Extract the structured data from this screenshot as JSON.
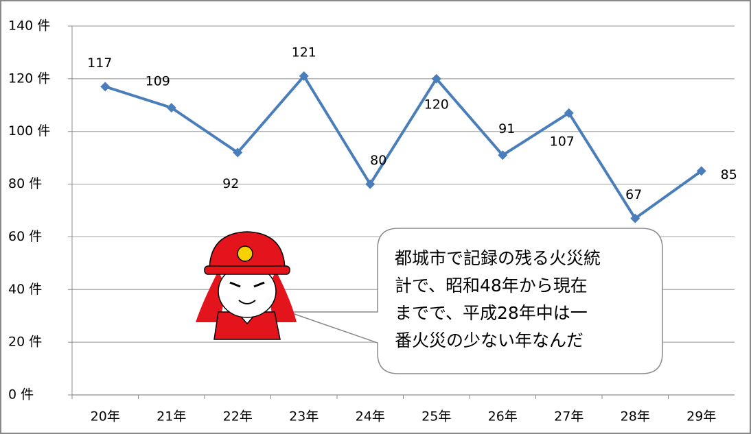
{
  "chart_data": {
    "type": "line",
    "categories": [
      "20年",
      "21年",
      "22年",
      "23年",
      "24年",
      "25年",
      "26年",
      "27年",
      "28年",
      "29年"
    ],
    "series": [
      {
        "name": null,
        "color": "#4a7ebb",
        "values": [
          117,
          109,
          92,
          121,
          80,
          120,
          91,
          107,
          67,
          85
        ]
      }
    ],
    "ylim": [
      0,
      140
    ],
    "yticks": [
      {
        "value": 0,
        "label": "0 件"
      },
      {
        "value": 20,
        "label": "20 件"
      },
      {
        "value": 40,
        "label": "40 件"
      },
      {
        "value": 60,
        "label": "60 件"
      },
      {
        "value": 80,
        "label": "80 件"
      },
      {
        "value": 100,
        "label": "100 件"
      },
      {
        "value": 120,
        "label": "120 件"
      },
      {
        "value": 140,
        "label": "140 件"
      }
    ],
    "grid": true,
    "annotation": {
      "lines": [
        "都城市で記録の残る火災統",
        "計で、昭和48年から現在",
        "までで、平成28年中は一",
        "番火災の少ない年なんだ"
      ]
    }
  }
}
